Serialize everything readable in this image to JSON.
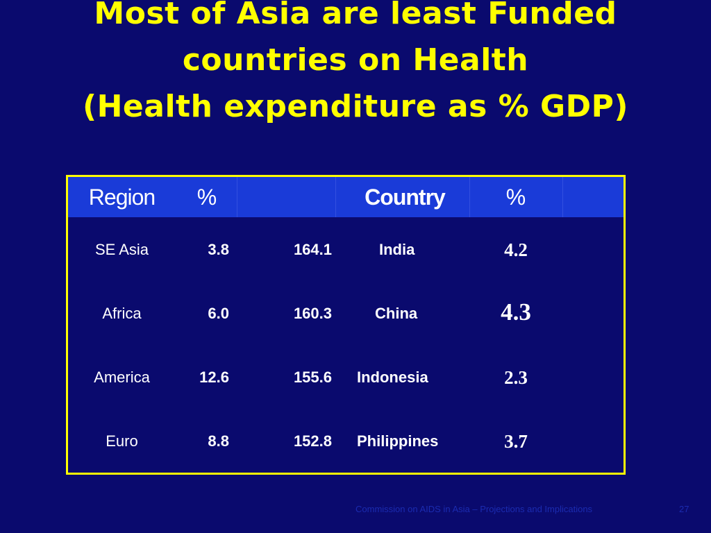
{
  "title": {
    "line1": "Most of Asia are least Funded",
    "line2": "countries on Health",
    "line3": "(Health expenditure as % GDP)"
  },
  "table": {
    "headers": {
      "region": "Region",
      "pct1": "%",
      "country": "Country",
      "pct2": "%"
    },
    "rows": [
      {
        "region": "SE Asia",
        "pct": "3.8",
        "num": "164.1",
        "country": "India",
        "pct2": "4.2"
      },
      {
        "region": "Africa",
        "pct": "6.0",
        "num": "160.3",
        "country": "China",
        "pct2": "4.3"
      },
      {
        "region": "America",
        "pct": "12.6",
        "num": "155.6",
        "country": "Indonesia",
        "pct2": "2.3"
      },
      {
        "region": "Euro",
        "pct": "8.8",
        "num": "152.8",
        "country": "Philippines",
        "pct2": "3.7"
      }
    ]
  },
  "footer": {
    "text": "Commission on AIDS in Asia – Projections and Implications",
    "page": "27"
  },
  "colors": {
    "background": "#0a0a6e",
    "title": "#ffff00",
    "table_border": "#ffff00",
    "header_bg": "#1a3bd8",
    "text": "#ffffff"
  }
}
